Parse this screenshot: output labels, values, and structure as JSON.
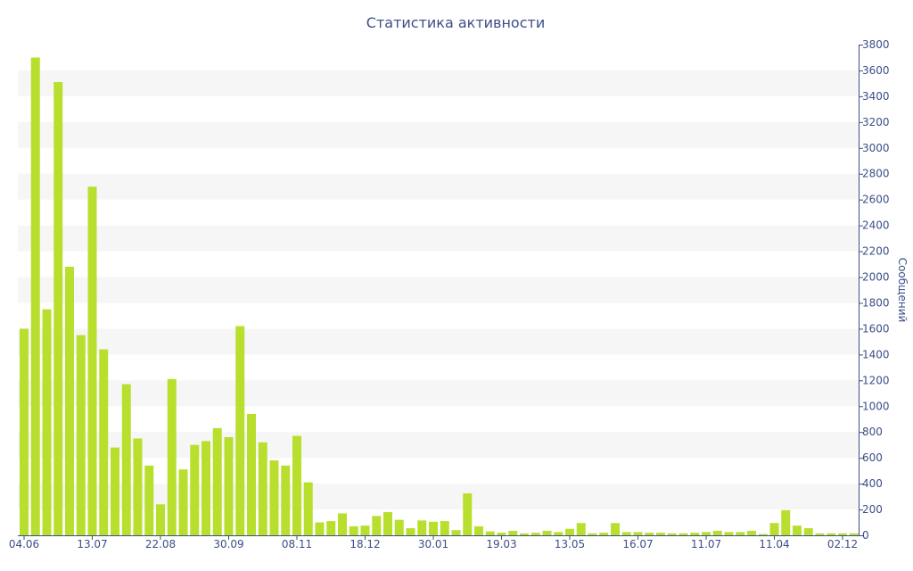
{
  "chart_data": {
    "type": "bar",
    "title": "Статистика активности",
    "ylabel": "Сообщений",
    "xlabel": "",
    "ylim": [
      0,
      3800
    ],
    "ytick_step": 200,
    "grid": "alternating horizontal bands",
    "y_axis_side": "right",
    "legend": "none",
    "x_tick_labels": [
      {
        "index": 0,
        "label": "04.06"
      },
      {
        "index": 6,
        "label": "13.07"
      },
      {
        "index": 12,
        "label": "22.08"
      },
      {
        "index": 18,
        "label": "30.09"
      },
      {
        "index": 24,
        "label": "08.11"
      },
      {
        "index": 30,
        "label": "18.12"
      },
      {
        "index": 36,
        "label": "30.01"
      },
      {
        "index": 42,
        "label": "19.03"
      },
      {
        "index": 48,
        "label": "13.05"
      },
      {
        "index": 54,
        "label": "16.07"
      },
      {
        "index": 60,
        "label": "11.07"
      },
      {
        "index": 66,
        "label": "11.04"
      },
      {
        "index": 72,
        "label": "02.12"
      }
    ],
    "values": [
      1600,
      3700,
      1750,
      3510,
      2080,
      1550,
      2700,
      1440,
      680,
      1170,
      750,
      540,
      240,
      1210,
      510,
      700,
      730,
      830,
      760,
      1620,
      940,
      720,
      580,
      540,
      770,
      410,
      100,
      110,
      170,
      70,
      75,
      150,
      180,
      120,
      55,
      115,
      105,
      110,
      40,
      325,
      70,
      30,
      20,
      35,
      15,
      20,
      35,
      25,
      50,
      95,
      15,
      20,
      95,
      25,
      25,
      20,
      20,
      15,
      15,
      20,
      25,
      35,
      25,
      25,
      35,
      10,
      95,
      195,
      75,
      55,
      15,
      15,
      15,
      15
    ],
    "colors": {
      "bar": "#b8df2e",
      "band": "#f6f6f6",
      "axis": "#3b4f86",
      "text": "#3b4f86"
    }
  }
}
